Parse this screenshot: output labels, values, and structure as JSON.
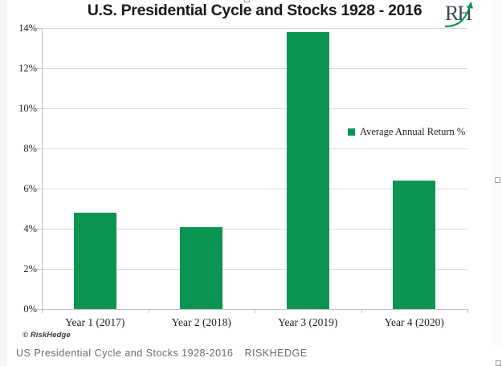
{
  "chart_data": {
    "type": "bar",
    "title": "U.S. Presidential Cycle and Stocks 1928 - 2016",
    "categories": [
      "Year 1 (2017)",
      "Year 2 (2018)",
      "Year 3 (2019)",
      "Year 4 (2020)"
    ],
    "values": [
      4.8,
      4.1,
      13.8,
      6.4
    ],
    "series_name": "Average Annual Return %",
    "legend_label": "Average Annual Return %",
    "xlabel": "",
    "ylabel": "",
    "ylim": [
      0,
      14
    ],
    "ytick_step": 2,
    "ytick_labels": [
      "0%",
      "2%",
      "4%",
      "6%",
      "8%",
      "10%",
      "12%",
      "14%"
    ],
    "grid": true,
    "legend_position": "center-right",
    "bar_color": "#0a9552"
  },
  "branding": {
    "logo_text": "RH",
    "copyright": "© RiskHedge"
  },
  "caption": {
    "text": "US Presidential Cycle and Stocks 1928-2016",
    "brand": "RISKHEDGE"
  },
  "colors": {
    "bar": "#0a9552",
    "gridline": "#dadada",
    "axis": "#c2c2c2",
    "logo_arrow": "#0a9552"
  }
}
